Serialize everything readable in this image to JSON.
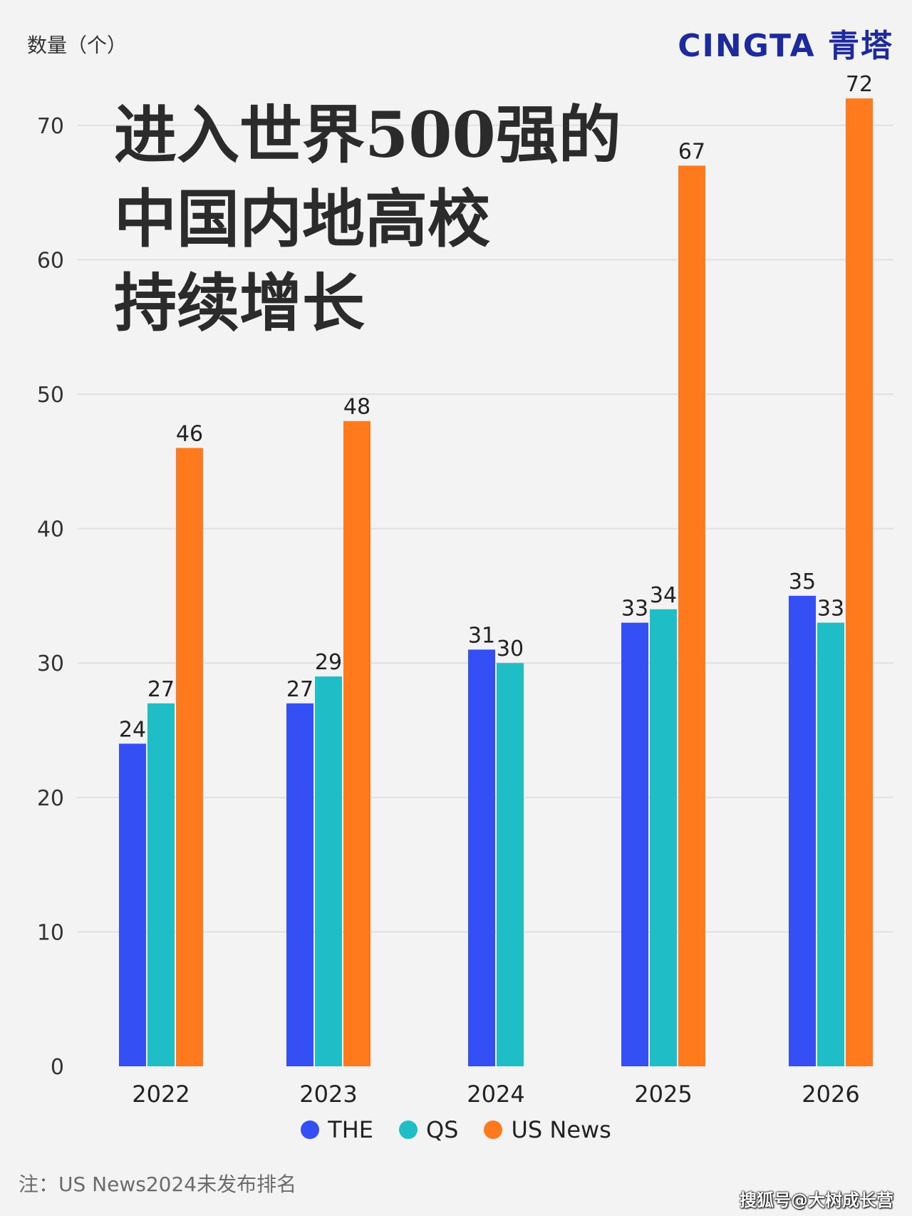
{
  "unit_label": "数量（个）",
  "brand": "CINGTA 青塔",
  "title_lines": [
    "进入世界500强的",
    "中国内地高校",
    "持续增长"
  ],
  "note": "注：US News2024未发布排名",
  "source": "搜狐号@大树成长营",
  "colors": {
    "THE": "#3450f4",
    "QS": "#1fbec6",
    "US News": "#ff7a1c"
  },
  "chart_data": {
    "type": "bar",
    "categories": [
      "2022",
      "2023",
      "2024",
      "2025",
      "2026"
    ],
    "series": [
      {
        "name": "THE",
        "values": [
          24,
          27,
          31,
          33,
          35
        ]
      },
      {
        "name": "QS",
        "values": [
          27,
          29,
          30,
          34,
          33
        ]
      },
      {
        "name": "US News",
        "values": [
          46,
          48,
          null,
          67,
          72
        ]
      }
    ],
    "ylim": [
      0,
      72
    ],
    "yticks": [
      0,
      10,
      20,
      30,
      40,
      50,
      60,
      70
    ],
    "grid": true,
    "legend_position": "bottom-center"
  }
}
